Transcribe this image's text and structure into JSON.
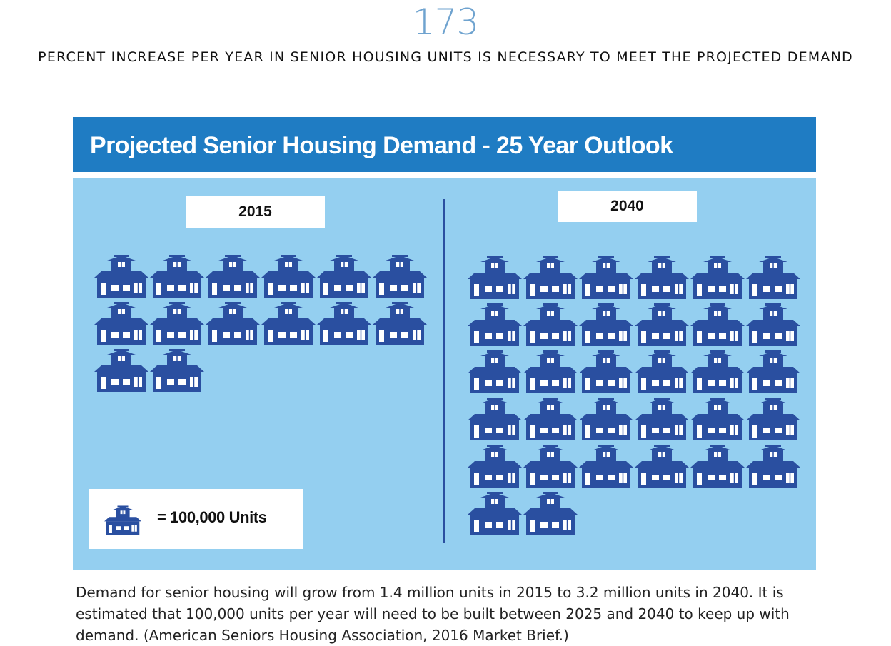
{
  "stat": {
    "number": "173",
    "headline": "PERCENT INCREASE PER YEAR IN SENIOR HOUSING UNITS IS NECESSARY TO MEET THE PROJECTED DEMAND"
  },
  "infographic": {
    "title": "Projected Senior Housing Demand - 25 Year Outlook",
    "legend_text": "= 100,000 Units",
    "legend_icon": "house-icon"
  },
  "caption": "Demand for senior housing will grow from 1.4 million units in 2015 to 3.2 million units in 2040. It is estimated that 100,000 units per year will need to be built between 2025 and 2040 to keep up with demand. (American Seniors Housing Association, 2016 Market Brief.)",
  "colors": {
    "accent_number": "#6fa3cf",
    "title_bar": "#1f7cc3",
    "panel_bg": "#94cff0",
    "house": "#2a4fa0"
  },
  "chart_data": {
    "type": "pictograph",
    "unit_label": "= 100,000 Units",
    "unit_value": 100000,
    "categories": [
      "2015",
      "2040"
    ],
    "values": [
      14,
      32
    ]
  }
}
